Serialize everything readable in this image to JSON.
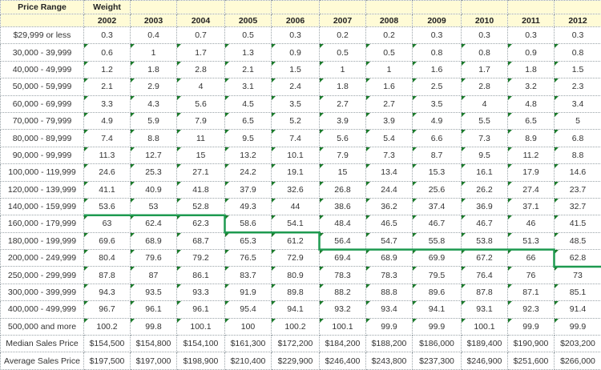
{
  "header": {
    "price_range_label": "Price Range",
    "weight_label": "Weight",
    "years": [
      "2002",
      "2003",
      "2004",
      "2005",
      "2006",
      "2007",
      "2008",
      "2009",
      "2010",
      "2011",
      "2012"
    ]
  },
  "rows": [
    {
      "label": "$29,999 or less",
      "values": [
        "0.3",
        "0.4",
        "0.7",
        "0.5",
        "0.3",
        "0.2",
        "0.2",
        "0.3",
        "0.3",
        "0.3",
        "0.3"
      ]
    },
    {
      "label": "30,000 - 39,999",
      "values": [
        "0.6",
        "1",
        "1.7",
        "1.3",
        "0.9",
        "0.5",
        "0.5",
        "0.8",
        "0.8",
        "0.9",
        "0.8"
      ]
    },
    {
      "label": "40,000 - 49,999",
      "values": [
        "1.2",
        "1.8",
        "2.8",
        "2.1",
        "1.5",
        "1",
        "1",
        "1.6",
        "1.7",
        "1.8",
        "1.5"
      ]
    },
    {
      "label": "50,000 - 59,999",
      "values": [
        "2.1",
        "2.9",
        "4",
        "3.1",
        "2.4",
        "1.8",
        "1.6",
        "2.5",
        "2.8",
        "3.2",
        "2.3"
      ]
    },
    {
      "label": "60,000 - 69,999",
      "values": [
        "3.3",
        "4.3",
        "5.6",
        "4.5",
        "3.5",
        "2.7",
        "2.7",
        "3.5",
        "4",
        "4.8",
        "3.4"
      ]
    },
    {
      "label": "70,000 - 79,999",
      "values": [
        "4.9",
        "5.9",
        "7.9",
        "6.5",
        "5.2",
        "3.9",
        "3.9",
        "4.9",
        "5.5",
        "6.5",
        "5"
      ]
    },
    {
      "label": "80,000 - 89,999",
      "values": [
        "7.4",
        "8.8",
        "11",
        "9.5",
        "7.4",
        "5.6",
        "5.4",
        "6.6",
        "7.3",
        "8.9",
        "6.8"
      ]
    },
    {
      "label": "90,000 - 99,999",
      "values": [
        "11.3",
        "12.7",
        "15",
        "13.2",
        "10.1",
        "7.9",
        "7.3",
        "8.7",
        "9.5",
        "11.2",
        "8.8"
      ]
    },
    {
      "label": "100,000 - 119,999",
      "values": [
        "24.6",
        "25.3",
        "27.1",
        "24.2",
        "19.1",
        "15",
        "13.4",
        "15.3",
        "16.1",
        "17.9",
        "14.6"
      ]
    },
    {
      "label": "120,000 - 139,999",
      "values": [
        "41.1",
        "40.9",
        "41.8",
        "37.9",
        "32.6",
        "26.8",
        "24.4",
        "25.6",
        "26.2",
        "27.4",
        "23.7"
      ]
    },
    {
      "label": "140,000 - 159,999",
      "values": [
        "53.6",
        "53",
        "52.8",
        "49.3",
        "44",
        "38.6",
        "36.2",
        "37.4",
        "36.9",
        "37.1",
        "32.7"
      ]
    },
    {
      "label": "160,000 - 179,999",
      "values": [
        "63",
        "62.4",
        "62.3",
        "58.6",
        "54.1",
        "48.4",
        "46.5",
        "46.7",
        "46.7",
        "46",
        "41.5"
      ]
    },
    {
      "label": "180,000 - 199,999",
      "values": [
        "69.6",
        "68.9",
        "68.7",
        "65.3",
        "61.2",
        "56.4",
        "54.7",
        "55.8",
        "53.8",
        "51.3",
        "48.5"
      ]
    },
    {
      "label": "200,000 - 249,999",
      "values": [
        "80.4",
        "79.6",
        "79.2",
        "76.5",
        "72.9",
        "69.4",
        "68.9",
        "69.9",
        "67.2",
        "66",
        "62.8"
      ]
    },
    {
      "label": "250,000 - 299,999",
      "values": [
        "87.8",
        "87",
        "86.1",
        "83.7",
        "80.9",
        "78.3",
        "78.3",
        "79.5",
        "76.4",
        "76",
        "73"
      ]
    },
    {
      "label": "300,000 - 399,999",
      "values": [
        "94.3",
        "93.5",
        "93.3",
        "91.9",
        "89.8",
        "88.2",
        "88.8",
        "89.6",
        "87.8",
        "87.1",
        "85.1"
      ]
    },
    {
      "label": "400,000 - 499,999",
      "values": [
        "96.7",
        "96.1",
        "96.1",
        "95.4",
        "94.1",
        "93.2",
        "93.4",
        "94.1",
        "93.1",
        "92.3",
        "91.4"
      ]
    },
    {
      "label": "500,000 and more",
      "values": [
        "100.2",
        "99.8",
        "100.1",
        "100",
        "100.2",
        "100.1",
        "99.9",
        "99.9",
        "100.1",
        "99.9",
        "99.9"
      ]
    }
  ],
  "summary": [
    {
      "label": "Median Sales Price",
      "values": [
        "$154,500",
        "$154,800",
        "$154,100",
        "$161,300",
        "$172,200",
        "$184,200",
        "$188,200",
        "$186,000",
        "$189,400",
        "$190,900",
        "$203,200"
      ]
    },
    {
      "label": "Average Sales Price",
      "values": [
        "$197,500",
        "$197,000",
        "$198,900",
        "$210,400",
        "$229,900",
        "$246,400",
        "$243,800",
        "$237,300",
        "$246,900",
        "$251,600",
        "$266,000"
      ]
    }
  ],
  "colors": {
    "header_bg": "#fffbd6",
    "median_line": "#1e9a50",
    "comment_flag": "#1a7a2a",
    "grid": "#9aa3a8"
  }
}
